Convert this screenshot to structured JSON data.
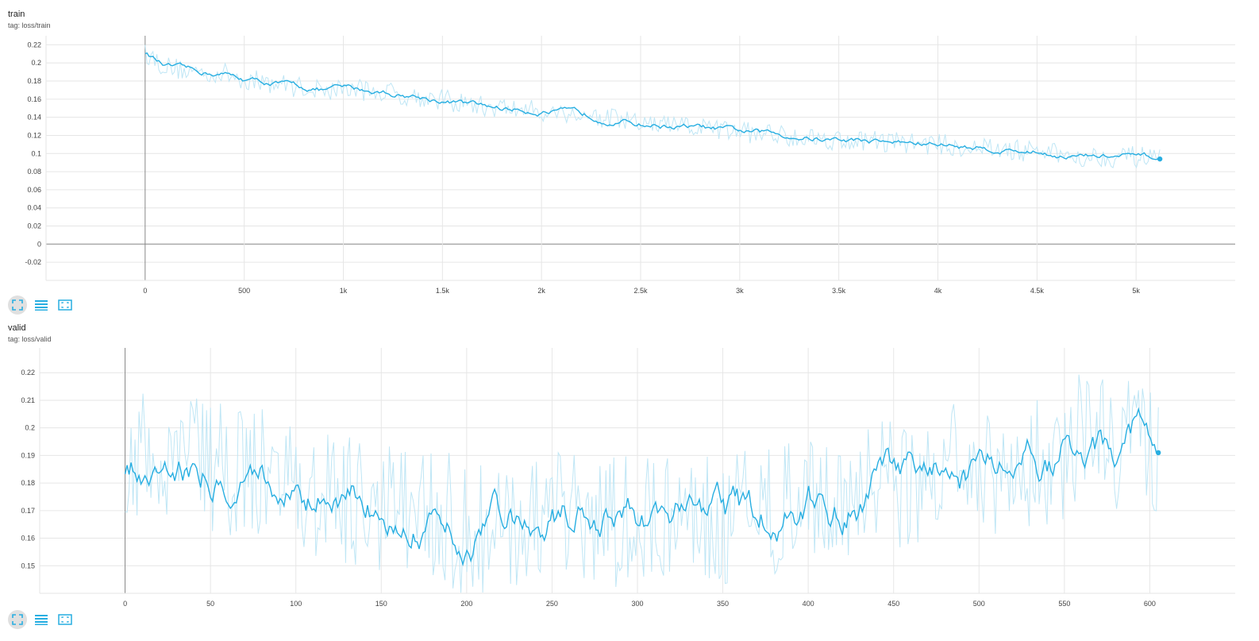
{
  "colors": {
    "series": "#27aee1",
    "raw": "#bfe6f5",
    "grid": "#e6e6e6",
    "axis": "#999999",
    "button": "#27aee1"
  },
  "controls": {
    "icons": [
      "fit-domain-icon",
      "toggle-log-scale-icon",
      "reset-zoom-icon"
    ]
  },
  "cards": [
    {
      "id": "train",
      "title": "train",
      "tag": "tag: loss/train"
    },
    {
      "id": "valid",
      "title": "valid",
      "tag": "tag: loss/valid"
    }
  ],
  "chart_data": [
    {
      "type": "line",
      "title": "train",
      "subtitle": "tag: loss/train",
      "xlabel": "",
      "ylabel": "",
      "xlim": [
        -500,
        5500
      ],
      "ylim": [
        -0.04,
        0.23
      ],
      "x_ticks": [
        0,
        500,
        1000,
        1500,
        2000,
        2500,
        3000,
        3500,
        4000,
        4500,
        5000
      ],
      "x_tick_labels": [
        "0",
        "500",
        "1k",
        "1.5k",
        "2k",
        "2.5k",
        "3k",
        "3.5k",
        "4k",
        "4.5k",
        "5k"
      ],
      "y_ticks": [
        -0.02,
        0,
        0.02,
        0.04,
        0.06,
        0.08,
        0.1,
        0.12,
        0.14,
        0.16,
        0.18,
        0.2,
        0.22
      ],
      "y_tick_labels": [
        "-0.02",
        "0",
        "0.02",
        "0.04",
        "0.06",
        "0.08",
        "0.1",
        "0.12",
        "0.14",
        "0.16",
        "0.18",
        "0.2",
        "0.22"
      ],
      "grid": true,
      "smoothed": {
        "x": [
          0,
          100,
          250,
          400,
          500,
          700,
          900,
          1000,
          1200,
          1500,
          1700,
          2000,
          2200,
          2500,
          2700,
          3000,
          3200,
          3500,
          3700,
          4000,
          4200,
          4500,
          4700,
          5000,
          5120
        ],
        "y": [
          0.212,
          0.196,
          0.19,
          0.188,
          0.182,
          0.176,
          0.17,
          0.172,
          0.168,
          0.159,
          0.152,
          0.147,
          0.143,
          0.133,
          0.13,
          0.124,
          0.121,
          0.115,
          0.114,
          0.11,
          0.106,
          0.102,
          0.097,
          0.096,
          0.094
        ]
      },
      "raw_noise": 0.012
    },
    {
      "type": "line",
      "title": "valid",
      "subtitle": "tag: loss/valid",
      "xlabel": "",
      "ylabel": "",
      "xlim": [
        -50,
        650
      ],
      "ylim": [
        0.14,
        0.229
      ],
      "x_ticks": [
        0,
        50,
        100,
        150,
        200,
        250,
        300,
        350,
        400,
        450,
        500,
        550,
        600
      ],
      "x_tick_labels": [
        "0",
        "50",
        "100",
        "150",
        "200",
        "250",
        "300",
        "350",
        "400",
        "450",
        "500",
        "550",
        "600"
      ],
      "y_ticks": [
        0.15,
        0.16,
        0.17,
        0.18,
        0.19,
        0.2,
        0.21,
        0.22
      ],
      "y_tick_labels": [
        "0.15",
        "0.16",
        "0.17",
        "0.18",
        "0.19",
        "0.2",
        "0.21",
        "0.22"
      ],
      "grid": true,
      "smoothed": {
        "x": [
          0,
          10,
          20,
          30,
          40,
          50,
          60,
          70,
          80,
          90,
          100,
          120,
          140,
          160,
          180,
          200,
          220,
          240,
          260,
          280,
          300,
          320,
          340,
          360,
          380,
          400,
          420,
          440,
          460,
          480,
          500,
          520,
          540,
          560,
          580,
          590,
          600,
          605
        ],
        "y": [
          0.183,
          0.188,
          0.19,
          0.189,
          0.187,
          0.185,
          0.183,
          0.186,
          0.183,
          0.18,
          0.177,
          0.174,
          0.17,
          0.174,
          0.17,
          0.162,
          0.168,
          0.166,
          0.168,
          0.166,
          0.165,
          0.17,
          0.169,
          0.167,
          0.168,
          0.174,
          0.169,
          0.178,
          0.181,
          0.185,
          0.183,
          0.187,
          0.188,
          0.195,
          0.194,
          0.2,
          0.196,
          0.191
        ]
      },
      "raw_noise": 0.025
    }
  ]
}
